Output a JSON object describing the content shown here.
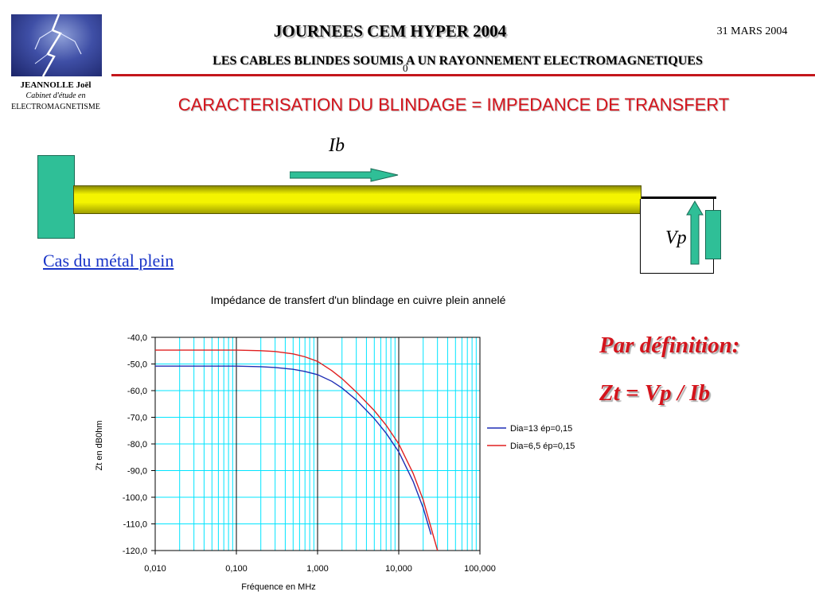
{
  "header": {
    "title": "JOURNEES CEM HYPER  2004",
    "date": "31 MARS 2004",
    "subtitle": "LES CABLES BLINDES SOUMIS A UN RAYONNEMENT  ELECTROMAGNETIQUES",
    "stray_char": "0"
  },
  "author": {
    "name": "JEANNOLLE Joël",
    "line1": "Cabinet d'étude en",
    "line2": "ELECTROMAGNETISME"
  },
  "section_title": "CARACTERISATION DU BLINDAGE = IMPEDANCE DE TRANSFERT",
  "diagram": {
    "ib_label": "Ib",
    "vp_label": "Vp",
    "case_link": "Cas du métal plein"
  },
  "definition": {
    "heading": "Par définition:",
    "formula": "Zt = Vp / Ib"
  },
  "colors": {
    "accent_red": "#d4141c",
    "connector_green": "#2fbf97",
    "cable_yellow": "#f4f400",
    "grid_cyan": "#00e5ff",
    "series1": "#1f2fb5",
    "series2": "#e02020"
  },
  "chart_data": {
    "type": "line",
    "title": "Impédance de transfert d'un blindage en cuivre plein annelé",
    "xlabel": "Fréquence en MHz",
    "ylabel": "Zt en dB0hm",
    "x_scale": "log",
    "xlim": [
      0.01,
      100
    ],
    "ylim": [
      -120,
      -40
    ],
    "x_ticks": [
      "0,010",
      "0,100",
      "1,000",
      "10,000",
      "100,000"
    ],
    "y_ticks": [
      "-40,0",
      "-50,0",
      "-60,0",
      "-70,0",
      "-80,0",
      "-90,0",
      "-100,0",
      "-110,0",
      "-120,0"
    ],
    "legend_position": "right",
    "grid": true,
    "series": [
      {
        "name": "Dia=13 ép=0,15",
        "color": "#1f2fb5",
        "x": [
          0.01,
          0.05,
          0.1,
          0.2,
          0.3,
          0.5,
          0.7,
          1.0,
          1.5,
          2.0,
          3.0,
          5.0,
          7.0,
          10.0,
          15.0,
          20.0,
          25.0
        ],
        "y": [
          -50.8,
          -50.8,
          -50.8,
          -51.0,
          -51.3,
          -52.0,
          -52.8,
          -54.0,
          -56.5,
          -59.0,
          -63.5,
          -70.5,
          -76.0,
          -83.0,
          -94.0,
          -104.0,
          -114.0
        ]
      },
      {
        "name": "Dia=6,5 ép=0,15",
        "color": "#e02020",
        "x": [
          0.01,
          0.05,
          0.1,
          0.2,
          0.3,
          0.5,
          0.7,
          1.0,
          1.5,
          2.0,
          3.0,
          5.0,
          7.0,
          10.0,
          15.0,
          20.0,
          30.0
        ],
        "y": [
          -44.8,
          -44.8,
          -44.8,
          -45.0,
          -45.3,
          -46.2,
          -47.3,
          -49.0,
          -52.5,
          -55.5,
          -60.5,
          -67.5,
          -73.0,
          -80.0,
          -91.0,
          -101.0,
          -120.0
        ]
      }
    ]
  }
}
